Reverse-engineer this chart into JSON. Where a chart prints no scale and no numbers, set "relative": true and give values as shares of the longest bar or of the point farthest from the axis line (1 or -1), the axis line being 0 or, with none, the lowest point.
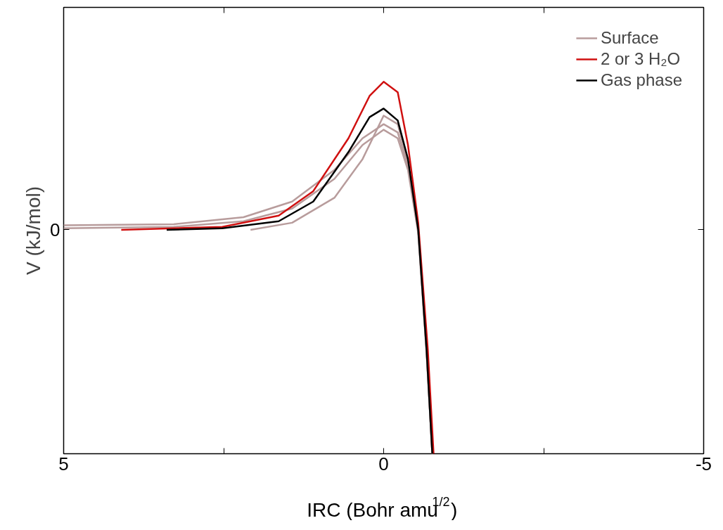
{
  "chart_data": {
    "type": "line",
    "relative": true,
    "xlabel": "IRC (Bohr amu$^{1/2}$)",
    "ylabel": "V (kJ/mol)",
    "xlim": [
      5,
      -5
    ],
    "xticks": [
      5,
      {
        "value": 2.5,
        "label": null
      },
      0,
      {
        "value": -2.5,
        "label": null
      },
      -5
    ],
    "annotations": [
      "0"
    ],
    "grid": false,
    "legend": "top right",
    "line_style": "solid",
    "marker": "none",
    "series": [
      {
        "name": "Surface",
        "color": "#b89c9c",
        "x": [
          5,
          3.28,
          2.19,
          1.43,
          0.77,
          0.33,
          0.0,
          -0.22,
          -0.38,
          -0.54,
          -0.67,
          -0.76
        ],
        "values": [
          0.614,
          0.617,
          0.636,
          0.678,
          0.763,
          0.848,
          0.886,
          0.864,
          0.773,
          0.602,
          0.28,
          0
        ]
      },
      {
        "color": "#b89c9c",
        "x": [
          5,
          3.28,
          2.19,
          1.43,
          0.77,
          0.33,
          0.0,
          -0.22,
          -0.38,
          -0.54,
          -0.67,
          -0.76
        ],
        "values": [
          0.606,
          0.61,
          0.625,
          0.659,
          0.739,
          0.83,
          0.871,
          0.848,
          0.763,
          0.593,
          0.271,
          0
        ]
      },
      {
        "color": "#b89c9c",
        "x": [
          2.08,
          1.43,
          0.77,
          0.33,
          0.0,
          -0.22,
          -0.38,
          -0.54,
          -0.67,
          -0.76
        ],
        "values": [
          0.602,
          0.621,
          0.688,
          0.792,
          0.909,
          0.886,
          0.782,
          0.602,
          0.28,
          0
        ]
      },
      {
        "name": "2 or 3 H₂O",
        "color": "#d01010",
        "x": [
          4.1,
          2.52,
          1.64,
          1.1,
          0.55,
          0.22,
          0.0,
          -0.22,
          -0.38,
          -0.54,
          -0.69,
          -0.78
        ],
        "values": [
          0.602,
          0.61,
          0.64,
          0.706,
          0.848,
          0.962,
          1.0,
          0.972,
          0.83,
          0.621,
          0.28,
          0
        ]
      },
      {
        "name": "Gas phase",
        "color": "#000000",
        "x": [
          3.39,
          2.52,
          1.64,
          1.1,
          0.55,
          0.22,
          0.0,
          -0.22,
          -0.38,
          -0.54,
          -0.67,
          -0.76
        ],
        "values": [
          0.602,
          0.606,
          0.625,
          0.678,
          0.811,
          0.905,
          0.928,
          0.896,
          0.792,
          0.602,
          0.28,
          0
        ]
      }
    ]
  }
}
